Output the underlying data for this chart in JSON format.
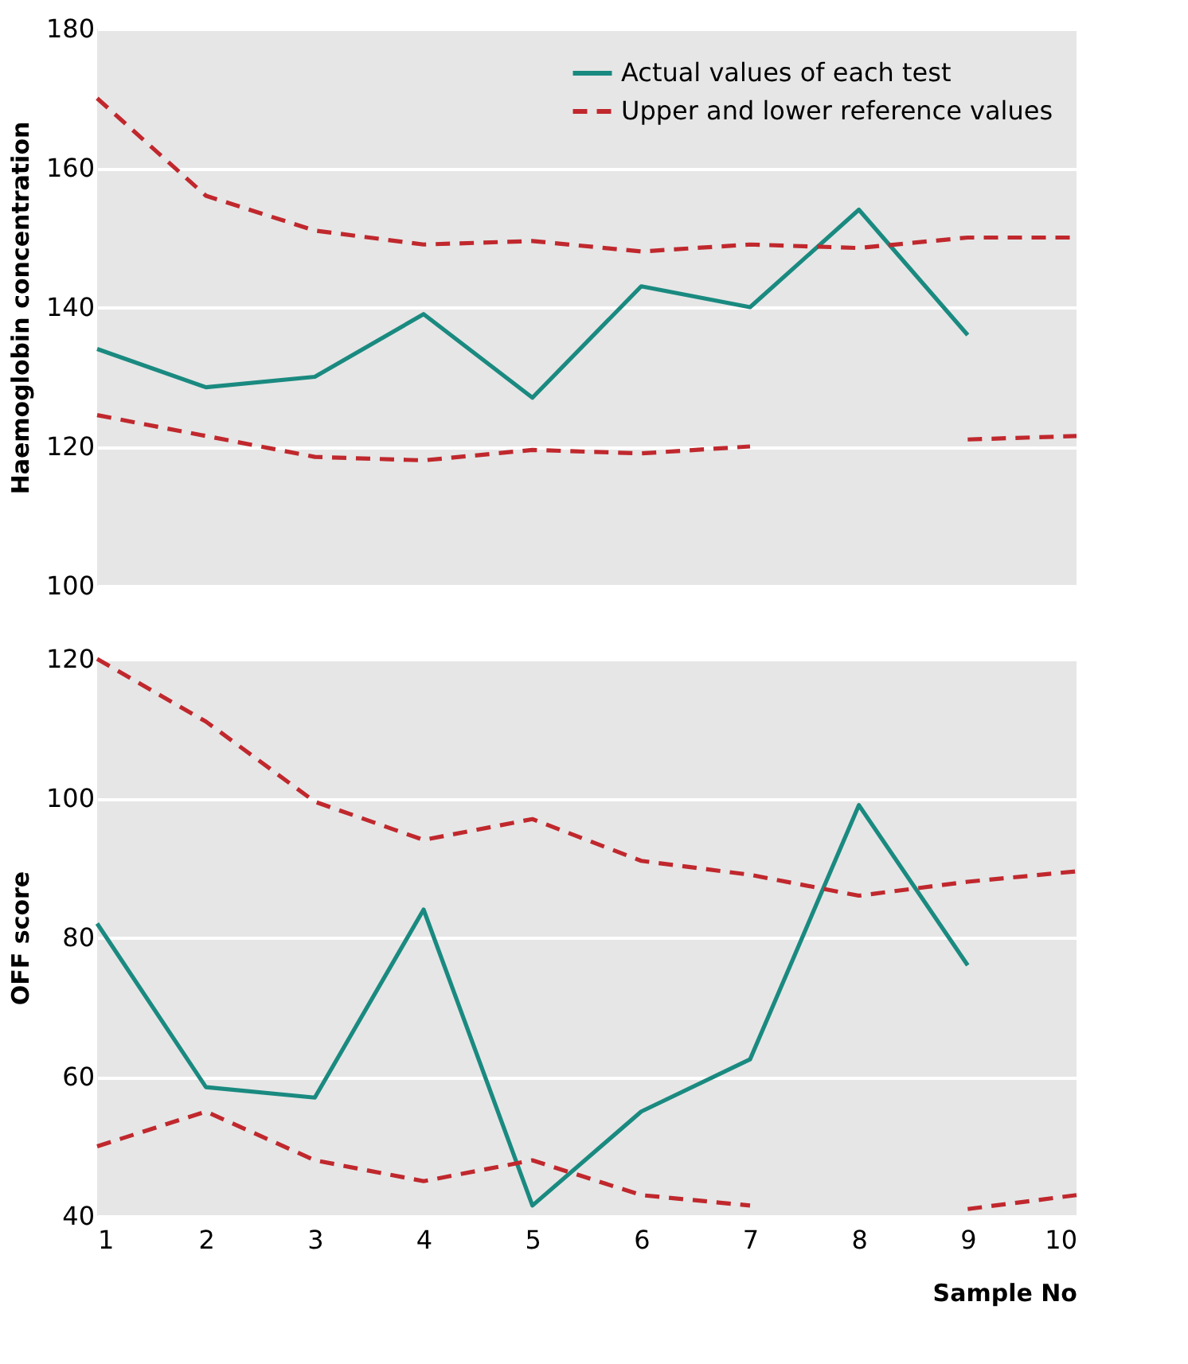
{
  "chart_data": [
    {
      "type": "line",
      "ylabel": "Haemoglobin concentration",
      "x": [
        1,
        2,
        3,
        4,
        5,
        6,
        7,
        8,
        9,
        10
      ],
      "xlim": [
        1,
        10
      ],
      "xticks": [
        1,
        2,
        3,
        4,
        5,
        6,
        7,
        8,
        9,
        10
      ],
      "ylim": [
        100,
        180
      ],
      "yticks": [
        100,
        120,
        140,
        160,
        180
      ],
      "tick_labels": "y",
      "grid": "y",
      "legend": "top right",
      "marker": "none",
      "series": [
        {
          "name": "Actual values of each test",
          "color": "#1a8a80",
          "line_style": "solid",
          "values": [
            134,
            128.5,
            130,
            139,
            127,
            143,
            140,
            154,
            136,
            null
          ]
        },
        {
          "name": "Upper and lower reference values",
          "color": "#c0282d",
          "line_style": "dashed",
          "values": [
            170,
            156,
            151,
            149,
            149.5,
            148,
            149,
            148.5,
            150,
            150
          ]
        },
        {
          "color": "#c0282d",
          "line_style": "dashed",
          "values": [
            124.5,
            121.5,
            118.5,
            118,
            119.5,
            119,
            120,
            null,
            121,
            121.5
          ]
        }
      ]
    },
    {
      "type": "line",
      "ylabel": "OFF score",
      "xlabel": "Sample No",
      "x": [
        1,
        2,
        3,
        4,
        5,
        6,
        7,
        8,
        9,
        10
      ],
      "xlim": [
        1,
        10
      ],
      "xticks": [
        1,
        2,
        3,
        4,
        5,
        6,
        7,
        8,
        9,
        10
      ],
      "ylim": [
        40,
        120
      ],
      "yticks": [
        40,
        60,
        80,
        100,
        120
      ],
      "grid": "y",
      "legend": false,
      "marker": "none",
      "series": [
        {
          "color": "#1a8a80",
          "line_style": "solid",
          "values": [
            82,
            58.5,
            57,
            84,
            41.5,
            55,
            62.5,
            99,
            76,
            null
          ]
        },
        {
          "color": "#c0282d",
          "line_style": "dashed",
          "values": [
            120,
            111,
            99.5,
            94,
            97,
            91,
            89,
            86,
            88,
            89.5
          ]
        },
        {
          "color": "#c0282d",
          "line_style": "dashed",
          "values": [
            50,
            55,
            48,
            45,
            48,
            43,
            41.5,
            null,
            41,
            43
          ]
        }
      ]
    }
  ]
}
